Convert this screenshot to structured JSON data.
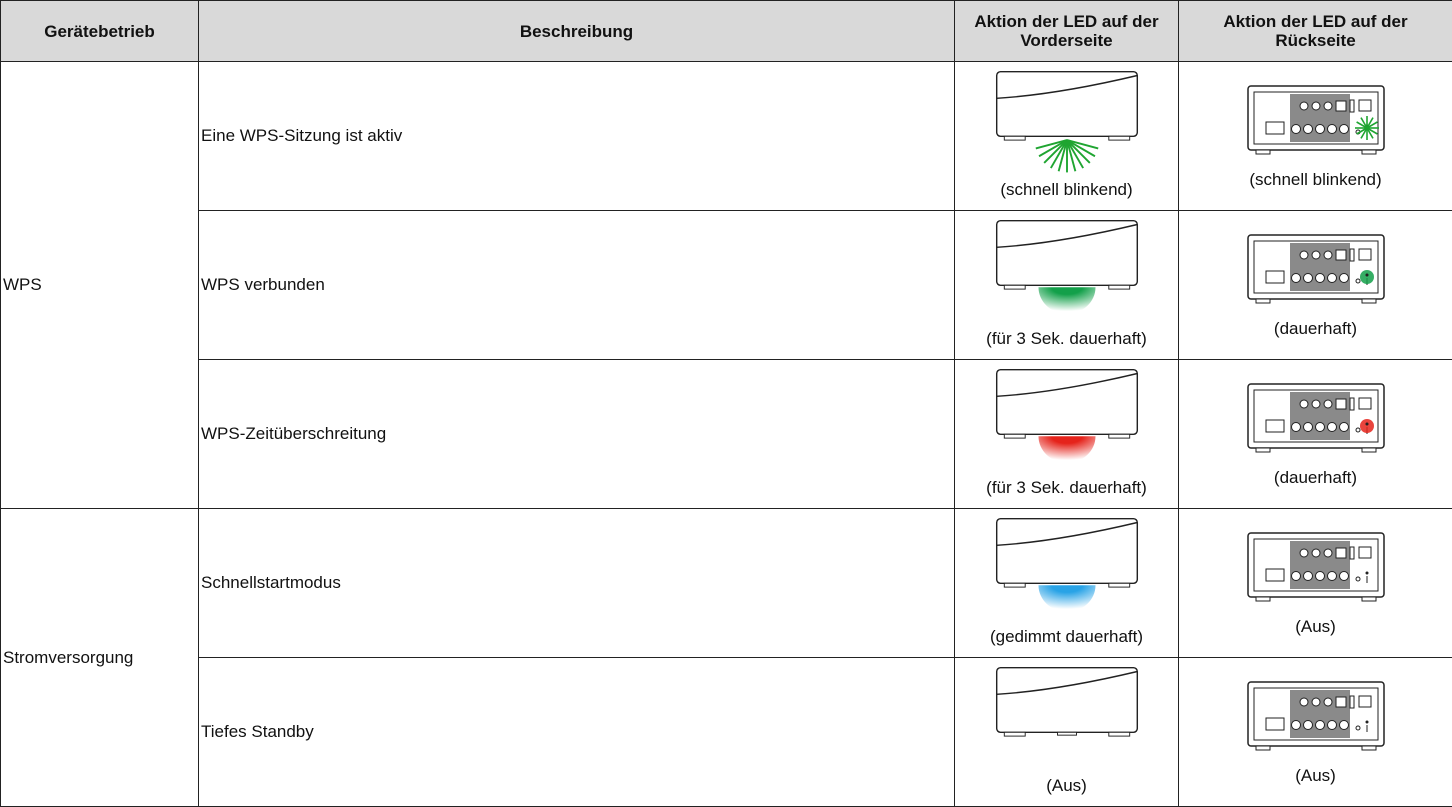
{
  "table": {
    "header": [
      "Gerätebetrieb",
      "Beschreibung",
      "Aktion der LED auf der Vorderseite",
      "Aktion der LED auf der Rückseite"
    ],
    "groups": [
      {
        "name": "WPS",
        "rows": [
          {
            "description": "Eine WPS-Sitzung ist aktiv",
            "front": "(schnell blinkend)",
            "rear": "(schnell blinkend)"
          },
          {
            "description": "WPS verbunden",
            "front": "(für 3 Sek. dauerhaft)",
            "rear": "(dauerhaft)"
          },
          {
            "description": "WPS-Zeitüberschreitung",
            "front": "(für 3 Sek. dauerhaft)",
            "rear": "(dauerhaft)"
          }
        ]
      },
      {
        "name": "Stromversorgung",
        "rows": [
          {
            "description": "Schnellstartmodus",
            "front": "(gedimmt dauerhaft)",
            "rear": "(Aus)"
          },
          {
            "description": "Tiefes Standby",
            "front": "(Aus)",
            "rear": "(Aus)"
          }
        ]
      }
    ]
  }
}
